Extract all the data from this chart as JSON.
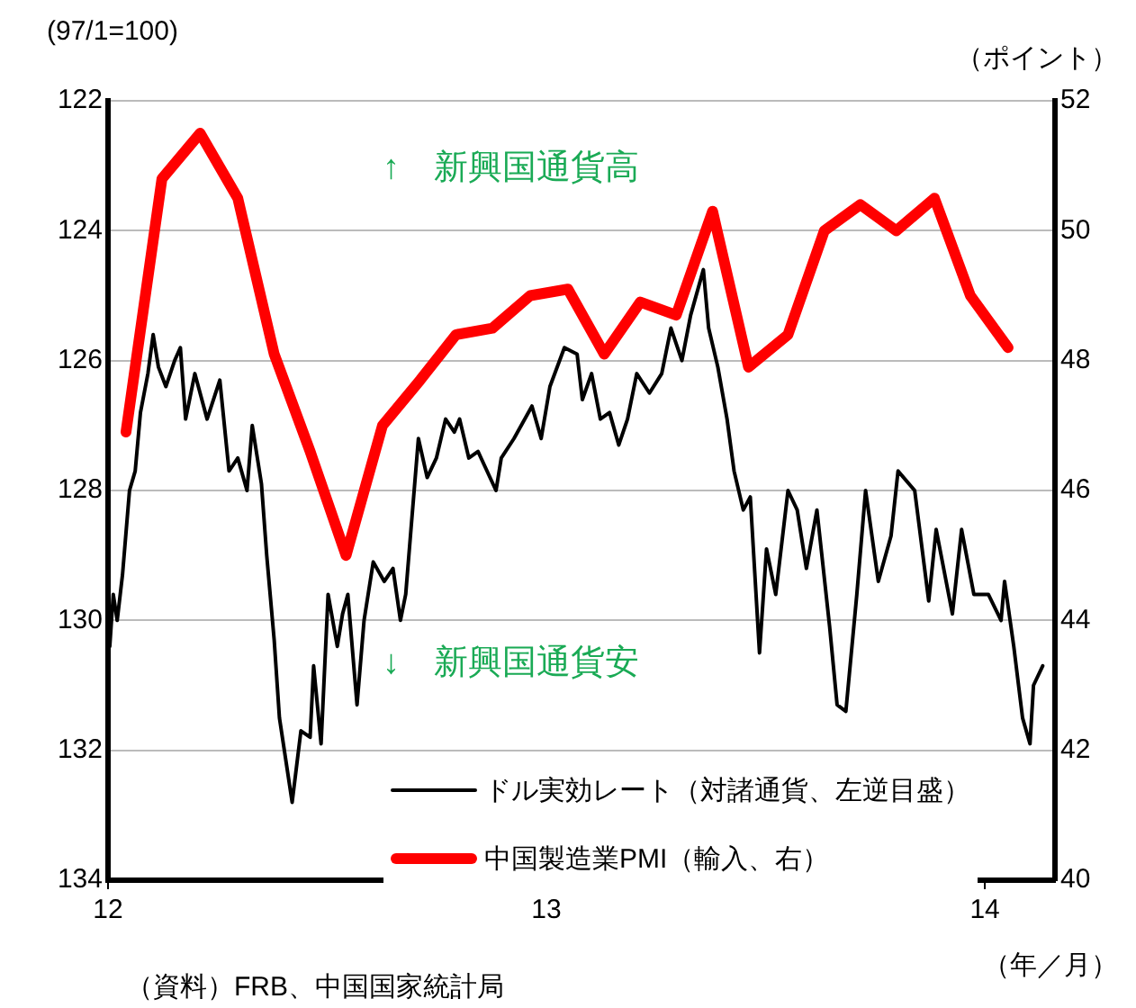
{
  "chart_data": {
    "type": "line",
    "ylabel": "(97/1=100)",
    "y2label": "（ポイント）",
    "xlabel": "（年／月）",
    "annotations": [
      "↑　新興国通貨高",
      "↓　新興国通貨安",
      "（資料）FRB、中国国家統計局"
    ],
    "xlim": [
      12,
      14.16
    ],
    "xticks": [
      12,
      13,
      14
    ],
    "ylim": [
      134,
      122
    ],
    "yticks": [
      122,
      124,
      126,
      128,
      130,
      132,
      134
    ],
    "y2lim": [
      40,
      52
    ],
    "y2ticks": [
      40,
      42,
      44,
      46,
      48,
      50,
      52
    ],
    "grid": "y",
    "legend": "bottom right",
    "marker": "none",
    "line_style": "solid",
    "series": [
      {
        "name": "ドル実効レート（対諸通貨、左逆目盛）",
        "color": "#000000",
        "x": [
          12.004,
          12.012,
          12.021,
          12.033,
          12.049,
          12.062,
          12.074,
          12.091,
          12.103,
          12.115,
          12.132,
          12.152,
          12.165,
          12.177,
          12.198,
          12.226,
          12.255,
          12.276,
          12.296,
          12.317,
          12.329,
          12.35,
          12.362,
          12.379,
          12.391,
          12.42,
          12.44,
          12.461,
          12.469,
          12.486,
          12.502,
          12.523,
          12.535,
          12.547,
          12.568,
          12.584,
          12.605,
          12.63,
          12.65,
          12.667,
          12.679,
          12.691,
          12.708,
          12.728,
          12.749,
          12.77,
          12.79,
          12.802,
          12.823,
          12.844,
          12.885,
          12.897,
          12.926,
          12.967,
          12.988,
          13.008,
          13.041,
          13.07,
          13.082,
          13.103,
          13.123,
          13.144,
          13.165,
          13.185,
          13.206,
          13.235,
          13.263,
          13.284,
          13.309,
          13.329,
          13.358,
          13.37,
          13.391,
          13.412,
          13.428,
          13.449,
          13.465,
          13.486,
          13.502,
          13.523,
          13.551,
          13.572,
          13.593,
          13.617,
          13.646,
          13.663,
          13.683,
          13.708,
          13.728,
          13.757,
          13.786,
          13.802,
          13.84,
          13.872,
          13.889,
          13.926,
          13.947,
          13.975,
          14.008,
          14.037,
          14.045,
          14.066,
          14.086,
          14.103,
          14.111,
          14.132
        ],
        "values": [
          130.4,
          129.6,
          130.0,
          129.3,
          128.0,
          127.7,
          126.8,
          126.2,
          125.6,
          126.1,
          126.4,
          126.0,
          125.8,
          126.9,
          126.2,
          126.9,
          126.3,
          127.7,
          127.5,
          128.0,
          127.0,
          127.9,
          129.0,
          130.3,
          131.5,
          132.8,
          131.7,
          131.8,
          130.7,
          131.9,
          129.6,
          130.4,
          129.9,
          129.6,
          131.3,
          130.0,
          129.1,
          129.4,
          129.2,
          130.0,
          129.6,
          128.6,
          127.2,
          127.8,
          127.5,
          126.9,
          127.1,
          126.9,
          127.5,
          127.4,
          128.0,
          127.5,
          127.2,
          126.7,
          127.2,
          126.4,
          125.8,
          125.9,
          126.6,
          126.2,
          126.9,
          126.8,
          127.3,
          126.9,
          126.2,
          126.5,
          126.2,
          125.5,
          126.0,
          125.3,
          124.6,
          125.5,
          126.1,
          126.9,
          127.7,
          128.3,
          128.1,
          130.5,
          128.9,
          129.6,
          128.0,
          128.3,
          129.2,
          128.3,
          130.1,
          131.3,
          131.4,
          129.6,
          128.0,
          129.4,
          128.7,
          127.7,
          128.0,
          129.7,
          128.6,
          129.9,
          128.6,
          129.6,
          129.6,
          130.0,
          129.4,
          130.4,
          131.5,
          131.9,
          131.0,
          130.7
        ]
      },
      {
        "name": "中国製造業PMI（輸入、右）",
        "color": "#ff0000",
        "axis": "y2",
        "x": [
          12.041,
          12.123,
          12.21,
          12.296,
          12.379,
          12.461,
          12.543,
          12.626,
          12.712,
          12.794,
          12.877,
          12.963,
          13.049,
          13.132,
          13.214,
          13.296,
          13.379,
          13.461,
          13.551,
          13.634,
          13.716,
          13.798,
          13.885,
          13.967,
          14.053
        ],
        "values": [
          46.9,
          50.8,
          51.5,
          50.5,
          48.1,
          46.6,
          45.0,
          47.0,
          47.7,
          48.4,
          48.5,
          49.0,
          49.1,
          48.1,
          48.9,
          48.7,
          50.3,
          47.9,
          48.4,
          50.0,
          50.4,
          50.0,
          50.5,
          49.0,
          48.2
        ]
      }
    ]
  }
}
